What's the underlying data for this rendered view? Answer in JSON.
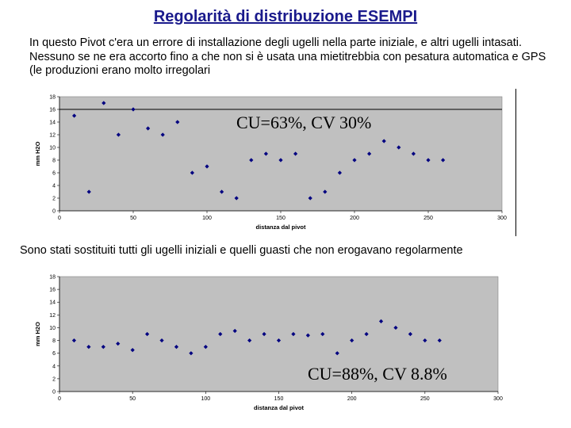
{
  "title": "Regolarità di distribuzione ESEMPI",
  "intro_text": "In questo Pivot c'era un errore di installazione degli ugelli nella parte iniziale, e altri ugelli intasati. Nessuno se ne era accorto fino a che non si è usata una mietitrebbia con pesatura automatica e GPS (le produzioni  erano molto irregolari",
  "middle_text": "Sono stati sostituiti tutti gli ugelli iniziali e quelli guasti che non erogavano regolarmente",
  "colors": {
    "title": "#1a1a8c",
    "plot_bg": "#c0c0c0",
    "marker": "#000080"
  },
  "chart_data": [
    {
      "type": "scatter",
      "title": "",
      "xlabel": "distanza dal pivot",
      "ylabel": "mm H2O",
      "xlim": [
        0,
        300
      ],
      "ylim": [
        0,
        18
      ],
      "xticks": [
        0,
        50,
        100,
        150,
        200,
        250,
        300
      ],
      "yticks": [
        0,
        2,
        4,
        6,
        8,
        10,
        12,
        14,
        16,
        18
      ],
      "reference_line": 16,
      "annotation": "CU=63%, CV 30%",
      "x": [
        10,
        20,
        30,
        40,
        50,
        60,
        70,
        80,
        90,
        100,
        110,
        120,
        130,
        140,
        150,
        160,
        170,
        180,
        190,
        200,
        210,
        220,
        230,
        240,
        250,
        260
      ],
      "y": [
        15,
        3,
        17,
        12,
        16,
        13,
        12,
        14,
        6,
        7,
        3,
        2,
        8,
        9,
        8,
        9,
        2,
        3,
        6,
        8,
        9,
        11,
        10,
        9,
        8,
        8
      ]
    },
    {
      "type": "scatter",
      "title": "",
      "xlabel": "distanza dal pivot",
      "ylabel": "mm H2O",
      "xlim": [
        0,
        300
      ],
      "ylim": [
        0,
        18
      ],
      "xticks": [
        0,
        50,
        100,
        150,
        200,
        250,
        300
      ],
      "yticks": [
        0,
        2,
        4,
        6,
        8,
        10,
        12,
        14,
        16,
        18
      ],
      "annotation": "CU=88%, CV 8.8%",
      "x": [
        10,
        20,
        30,
        40,
        50,
        60,
        70,
        80,
        90,
        100,
        110,
        120,
        130,
        140,
        150,
        160,
        170,
        180,
        190,
        200,
        210,
        220,
        230,
        240,
        250,
        260
      ],
      "y": [
        8,
        7,
        7,
        7.5,
        6.5,
        9,
        8,
        7,
        6,
        7,
        9,
        9.5,
        8,
        9,
        8,
        9,
        8.8,
        9,
        6,
        8,
        9,
        11,
        10,
        9,
        8,
        8
      ]
    }
  ]
}
